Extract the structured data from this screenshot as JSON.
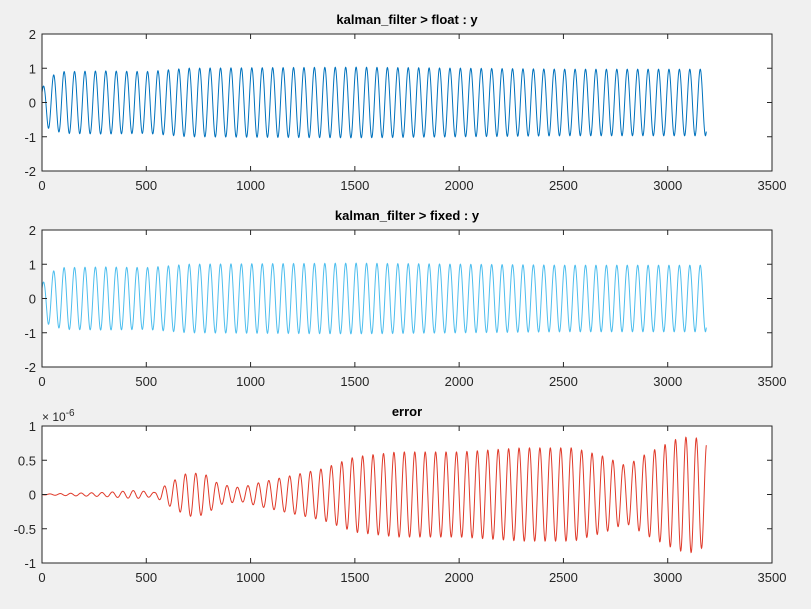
{
  "figure": {
    "background": "#f0f0f0"
  },
  "chart_data": [
    {
      "type": "line",
      "title": "kalman_filter > float : y",
      "xlim": [
        0,
        3500
      ],
      "ylim": [
        -2,
        2
      ],
      "xticks": [
        "0",
        "500",
        "1000",
        "1500",
        "2000",
        "2500",
        "3000",
        "3500"
      ],
      "yticks": [
        "2",
        "1",
        "0",
        "-1",
        "-2"
      ],
      "grid": false,
      "color": "#0072BD",
      "signal": {
        "kind": "sinusoid",
        "period_samples": 50,
        "x_end": 3185,
        "end_value": -0.85,
        "amplitude_envelope": [
          [
            0,
            0.4
          ],
          [
            30,
            0.75
          ],
          [
            100,
            0.9
          ],
          [
            300,
            0.92
          ],
          [
            500,
            0.9
          ],
          [
            700,
            1.0
          ],
          [
            1500,
            1.03
          ],
          [
            2000,
            1.0
          ],
          [
            2500,
            0.97
          ],
          [
            3185,
            0.97
          ]
        ]
      }
    },
    {
      "type": "line",
      "title": "kalman_filter > fixed : y",
      "xlim": [
        0,
        3500
      ],
      "ylim": [
        -2,
        2
      ],
      "xticks": [
        "0",
        "500",
        "1000",
        "1500",
        "2000",
        "2500",
        "3000",
        "3500"
      ],
      "yticks": [
        "2",
        "1",
        "0",
        "-1",
        "-2"
      ],
      "grid": false,
      "color": "#4DBEEE",
      "signal": {
        "kind": "sinusoid",
        "period_samples": 50,
        "x_end": 3185,
        "end_value": -0.85,
        "amplitude_envelope": [
          [
            0,
            0.4
          ],
          [
            30,
            0.75
          ],
          [
            100,
            0.9
          ],
          [
            300,
            0.92
          ],
          [
            500,
            0.9
          ],
          [
            700,
            1.0
          ],
          [
            1500,
            1.03
          ],
          [
            2000,
            1.0
          ],
          [
            2500,
            0.97
          ],
          [
            3185,
            0.97
          ]
        ]
      }
    },
    {
      "type": "line",
      "title": "error",
      "xlim": [
        0,
        3500
      ],
      "ylim": [
        -1,
        1
      ],
      "y_exponent": "× 10",
      "y_exponent_power": "-6",
      "xticks": [
        "0",
        "500",
        "1000",
        "1500",
        "2000",
        "2500",
        "3000",
        "3500"
      ],
      "yticks": [
        "1",
        "0.5",
        "0",
        "-0.5",
        "-1"
      ],
      "grid": false,
      "color": "#E03A2A",
      "signal": {
        "kind": "sinusoid",
        "period_samples": 50,
        "x_end": 3185,
        "end_value": 0.72,
        "amplitude_envelope": [
          [
            0,
            0.005
          ],
          [
            100,
            0.015
          ],
          [
            300,
            0.03
          ],
          [
            450,
            0.06
          ],
          [
            540,
            0.03
          ],
          [
            600,
            0.15
          ],
          [
            700,
            0.32
          ],
          [
            780,
            0.3
          ],
          [
            850,
            0.15
          ],
          [
            950,
            0.1
          ],
          [
            1050,
            0.18
          ],
          [
            1200,
            0.28
          ],
          [
            1350,
            0.38
          ],
          [
            1500,
            0.55
          ],
          [
            1700,
            0.62
          ],
          [
            2000,
            0.62
          ],
          [
            2300,
            0.68
          ],
          [
            2550,
            0.68
          ],
          [
            2700,
            0.55
          ],
          [
            2800,
            0.42
          ],
          [
            2900,
            0.6
          ],
          [
            3050,
            0.82
          ],
          [
            3120,
            0.85
          ],
          [
            3185,
            0.75
          ]
        ]
      }
    }
  ]
}
